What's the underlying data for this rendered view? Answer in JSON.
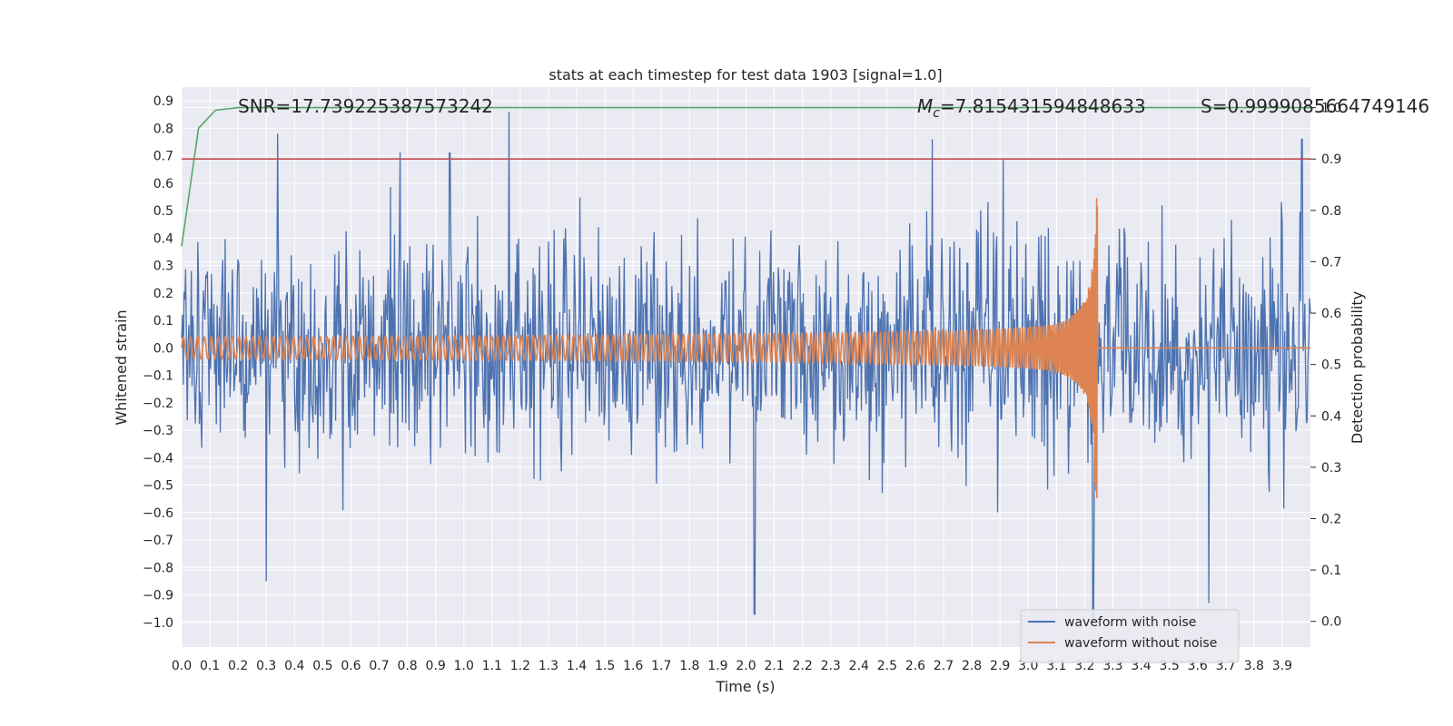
{
  "chart_data": {
    "type": "line",
    "title": "stats at each timestep for test data 1903 [signal=1.0]",
    "xlabel": "Time (s)",
    "ylabel": "Whitened strain",
    "ylabel_right": "Detection probability",
    "xlim": [
      0.0,
      4.0
    ],
    "ylim": [
      -1.09,
      0.95
    ],
    "ylim_right": [
      -0.05,
      1.04
    ],
    "x_ticks": [
      "0.0",
      "0.1",
      "0.2",
      "0.3",
      "0.4",
      "0.5",
      "0.6",
      "0.7",
      "0.8",
      "0.9",
      "1.0",
      "1.1",
      "1.2",
      "1.3",
      "1.4",
      "1.5",
      "1.6",
      "1.7",
      "1.8",
      "1.9",
      "2.0",
      "2.1",
      "2.2",
      "2.3",
      "2.4",
      "2.5",
      "2.6",
      "2.7",
      "2.8",
      "2.9",
      "3.0",
      "3.1",
      "3.2",
      "3.3",
      "3.4",
      "3.5",
      "3.6",
      "3.7",
      "3.8",
      "3.9"
    ],
    "y_ticks": [
      "0.9",
      "0.8",
      "0.7",
      "0.6",
      "0.5",
      "0.4",
      "0.3",
      "0.2",
      "0.1",
      "0.0",
      "−0.1",
      "−0.2",
      "−0.3",
      "−0.4",
      "−0.5",
      "−0.6",
      "−0.7",
      "−0.8",
      "−0.9",
      "−1.0"
    ],
    "y_ticks_right": [
      "1.0",
      "0.9",
      "0.8",
      "0.7",
      "0.6",
      "0.5",
      "0.4",
      "0.3",
      "0.2",
      "0.1",
      "0.0"
    ],
    "annotations": {
      "snr": "SNR=17.739225387573242",
      "mc_symbol": "M",
      "mc_sub": "c",
      "mc_value": "=7.815431594848633",
      "s": "S=0.9999085664749146"
    },
    "series": [
      {
        "name": "waveform with noise",
        "color": "#4c72b0",
        "kind": "noise",
        "approx_amplitude": 0.3,
        "spikes": [
          [
            0.34,
            0.78
          ],
          [
            0.3,
            -0.85
          ],
          [
            1.16,
            0.86
          ],
          [
            2.03,
            -0.97
          ],
          [
            3.23,
            -1.0
          ],
          [
            3.64,
            -0.93
          ],
          [
            3.97,
            0.76
          ],
          [
            0.95,
            0.71
          ],
          [
            2.66,
            0.76
          ]
        ]
      },
      {
        "name": "waveform without noise",
        "color": "#dd8452",
        "kind": "chirp",
        "t_merger": 3.245,
        "approx_peak": 0.55
      },
      {
        "name": "detection probability",
        "color": "#55a868",
        "axis": "right",
        "x": [
          0.0,
          0.06,
          0.12,
          0.2,
          4.0
        ],
        "y": [
          0.73,
          0.96,
          0.995,
          1.0,
          1.0
        ]
      },
      {
        "name": "threshold",
        "color": "#c44e52",
        "axis": "right",
        "x": [
          0.0,
          4.0
        ],
        "y": [
          0.9,
          0.9
        ]
      }
    ],
    "legend": {
      "position": "lower right",
      "entries": [
        {
          "label": "waveform with noise",
          "color": "#4c72b0"
        },
        {
          "label": "waveform without noise",
          "color": "#dd8452"
        }
      ]
    },
    "grid": true,
    "style": {
      "background": "#eaeaf2",
      "grid_color": "#ffffff"
    }
  }
}
